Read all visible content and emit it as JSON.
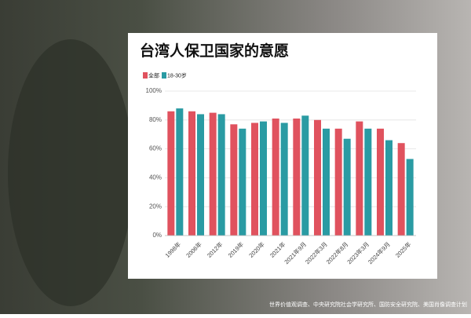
{
  "chart_data": {
    "type": "bar",
    "title": "台湾人保卫国家的意愿",
    "categories": [
      "1998年",
      "2006年",
      "2012年",
      "2019年",
      "2020年",
      "2021年",
      "2021年9月",
      "2022年3月",
      "2022年8月",
      "2023年3月",
      "2024年9月",
      "2025年"
    ],
    "series": [
      {
        "name": "全部",
        "color": "#e0525e",
        "values": [
          86,
          86,
          85,
          77,
          78,
          81,
          81,
          80,
          74,
          79,
          74,
          64
        ]
      },
      {
        "name": "18-30岁",
        "color": "#2a9ba3",
        "values": [
          88,
          84,
          84,
          74,
          79,
          78,
          83,
          74,
          67,
          74,
          66,
          53
        ]
      }
    ],
    "ylim": [
      0,
      100
    ],
    "yticks": [
      {
        "value": 0,
        "label": "0%"
      },
      {
        "value": 20,
        "label": "20%"
      },
      {
        "value": 40,
        "label": "40%"
      },
      {
        "value": 60,
        "label": "60%"
      },
      {
        "value": 80,
        "label": "80%"
      },
      {
        "value": 100,
        "label": "100%"
      }
    ],
    "grid": true,
    "source": "世界价值观调查、中央研究院社会学研究所、国防安全研究院、美国肖像调查计划"
  }
}
